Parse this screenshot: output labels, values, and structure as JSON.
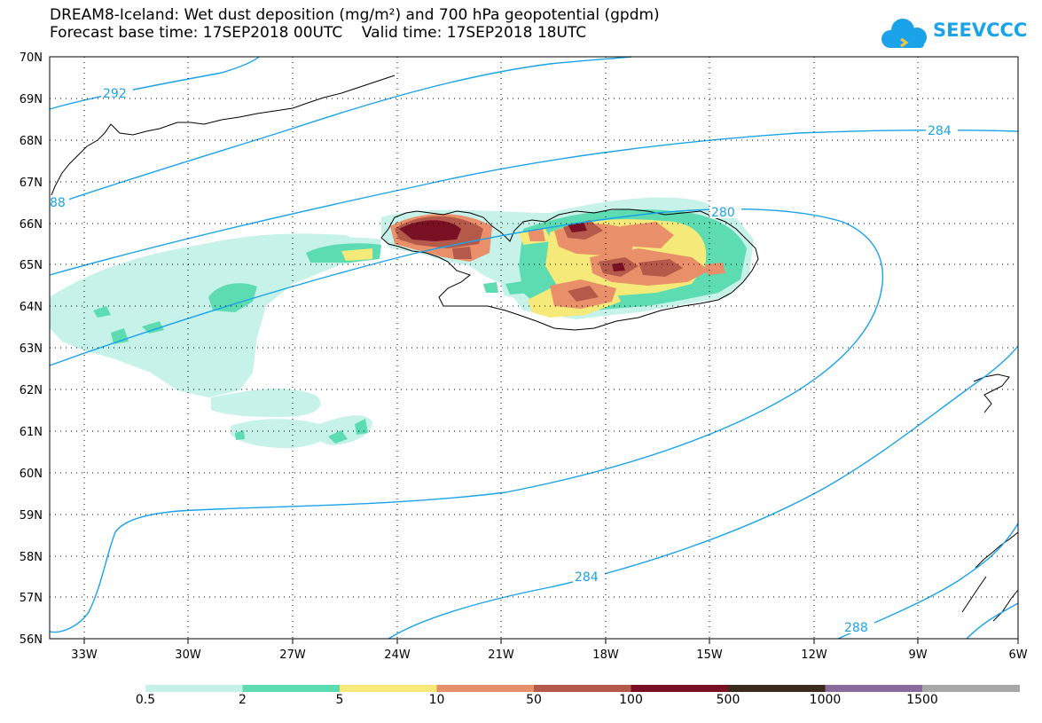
{
  "title": {
    "line1": "DREAM8-Iceland: Wet dust deposition (mg/m²) and 700 hPa geopotential (gpdm)",
    "line2": "Forecast base time: 17SEP2018 00UTC    Valid time: 17SEP2018 18UTC"
  },
  "logo": {
    "text": "SEEVCCC",
    "icon": "cloud-icon"
  },
  "map": {
    "region": "Iceland",
    "lat_labels": [
      "70N",
      "69N",
      "68N",
      "67N",
      "66N",
      "65N",
      "64N",
      "63N",
      "62N",
      "61N",
      "60N",
      "59N",
      "58N",
      "57N",
      "56N"
    ],
    "lon_labels": [
      "33W",
      "30W",
      "27W",
      "24W",
      "21W",
      "18W",
      "15W",
      "12W",
      "9W",
      "6W"
    ],
    "contour_labels": [
      "292",
      "88",
      "284",
      "280",
      "284",
      "288"
    ],
    "contour_color": "#1aa3e8"
  },
  "legend": {
    "labels": [
      "0.5",
      "2",
      "5",
      "10",
      "50",
      "100",
      "500",
      "1000",
      "1500"
    ],
    "colors": [
      "#c6f2ea",
      "#5cdcb0",
      "#f5e97a",
      "#e9906b",
      "#b55a4a",
      "#7a1024",
      "#3b2a1e",
      "#8a6a9a",
      "#a7a7a7"
    ]
  }
}
